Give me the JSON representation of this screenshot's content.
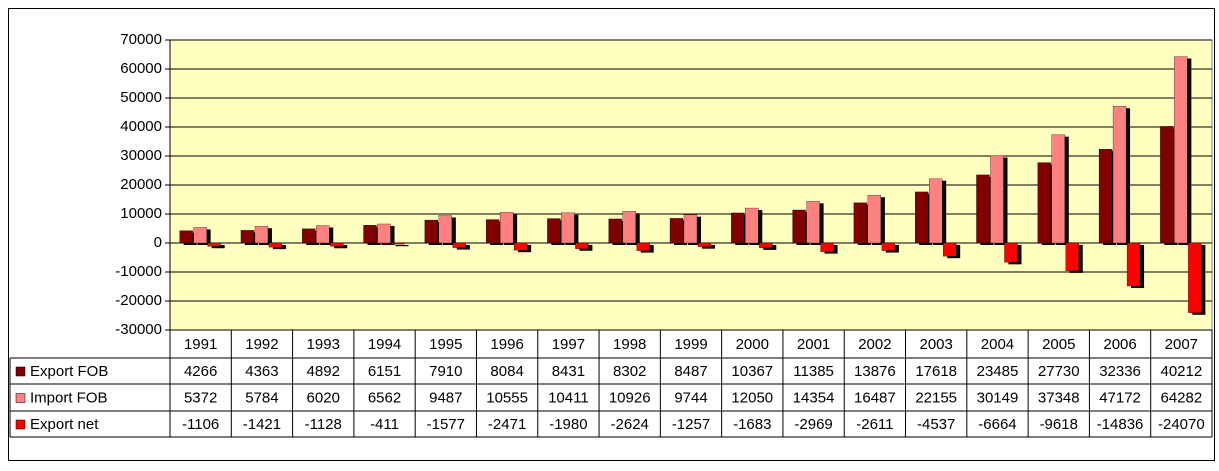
{
  "chart_data": {
    "type": "bar",
    "categories": [
      "1991",
      "1992",
      "1993",
      "1994",
      "1995",
      "1996",
      "1997",
      "1998",
      "1999",
      "2000",
      "2001",
      "2002",
      "2003",
      "2004",
      "2005",
      "2006",
      "2007"
    ],
    "series": [
      {
        "name": "Export FOB",
        "color": "#800000",
        "values": [
          4266,
          4363,
          4892,
          6151,
          7910,
          8084,
          8431,
          8302,
          8487,
          10367,
          11385,
          13876,
          17618,
          23485,
          27730,
          32336,
          40212
        ]
      },
      {
        "name": "Import FOB",
        "color": "#ff8080",
        "values": [
          5372,
          5784,
          6020,
          6562,
          9487,
          10555,
          10411,
          10926,
          9744,
          12050,
          14354,
          16487,
          22155,
          30149,
          37348,
          47172,
          64282
        ]
      },
      {
        "name": "Export net",
        "color": "#ff0000",
        "values": [
          -1106,
          -1421,
          -1128,
          -411,
          -1577,
          -2471,
          -1980,
          -2624,
          -1257,
          -1683,
          -2969,
          -2611,
          -4537,
          -6664,
          -9618,
          -14836,
          -24070
        ]
      }
    ],
    "ylim": [
      -30000,
      70000
    ],
    "yticks": [
      -30000,
      -20000,
      -10000,
      0,
      10000,
      20000,
      30000,
      40000,
      50000,
      60000,
      70000
    ],
    "grid": true,
    "plot_background": "#ffffc0"
  }
}
